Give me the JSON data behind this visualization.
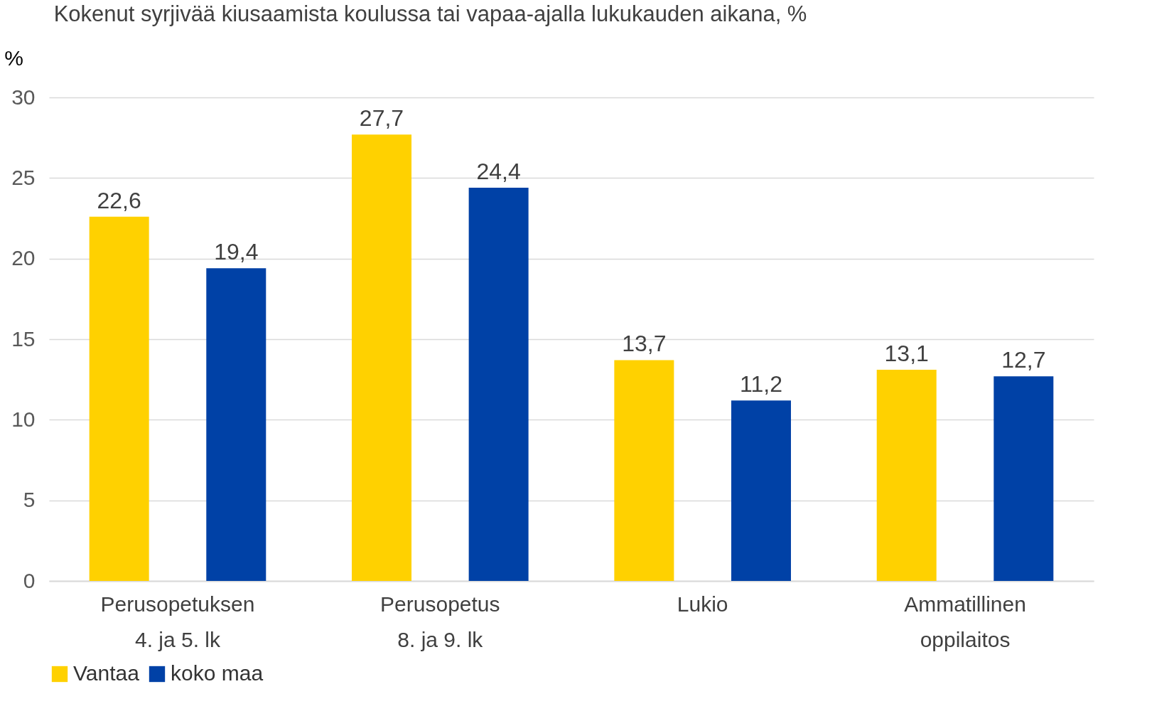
{
  "chart_data": {
    "type": "bar",
    "title": "Kokenut syrjivää kiusaamista koulussa tai vapaa-ajalla lukukauden aikana, %",
    "ylabel": "%",
    "categories": [
      "Perusopetuksen\n4. ja 5. lk",
      "Perusopetus\n8. ja 9. lk",
      "Lukio",
      "Ammatillinen\noppilaitos"
    ],
    "series": [
      {
        "name": "Vantaa",
        "color": "#ffd100",
        "values": [
          22.6,
          27.7,
          13.7,
          13.1
        ],
        "value_labels": [
          "22,6",
          "27,7",
          "13,7",
          "13,1"
        ]
      },
      {
        "name": "koko maa",
        "color": "#0041a6",
        "values": [
          19.4,
          24.4,
          11.2,
          12.7
        ],
        "value_labels": [
          "19,4",
          "24,4",
          "11,2",
          "12,7"
        ]
      }
    ],
    "ylim": [
      0,
      30
    ],
    "yticks": [
      0,
      5,
      10,
      15,
      20,
      25,
      30
    ],
    "grid": "y",
    "legend": "bottom"
  }
}
